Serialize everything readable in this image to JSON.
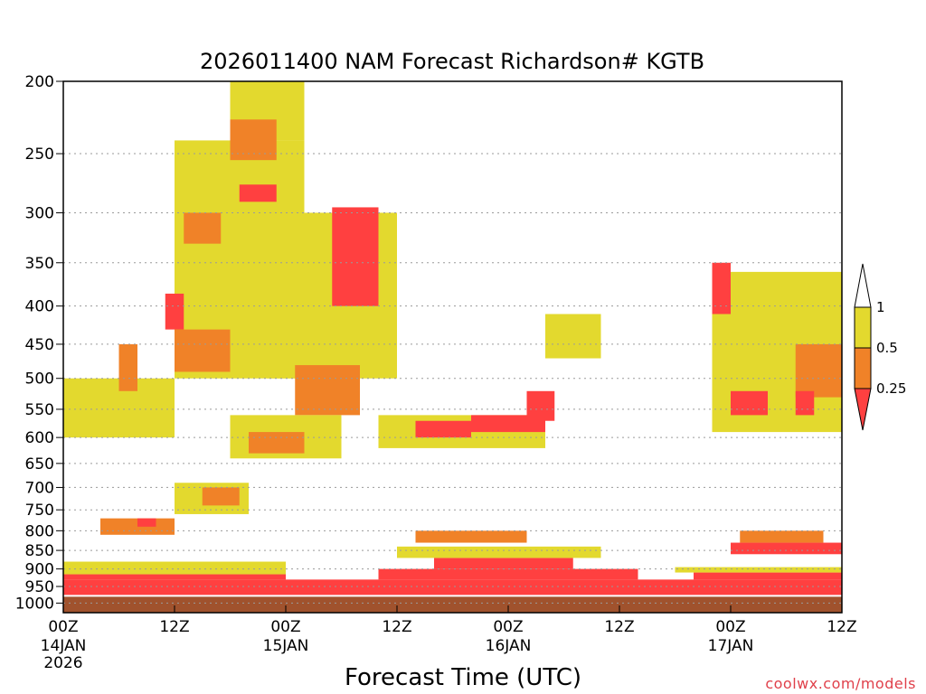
{
  "chart_data": {
    "type": "heatmap",
    "title": "2026011400 NAM Forecast Richardson# KGTB",
    "xlabel": "Forecast Time (UTC)",
    "ylabel": "",
    "y_axis": "pressure (hPa), inverted",
    "ylim": [
      1030,
      200
    ],
    "y_ticks": [
      "200",
      "250",
      "300",
      "350",
      "400",
      "450",
      "500",
      "550",
      "600",
      "650",
      "700",
      "750",
      "800",
      "850",
      "900",
      "950",
      "1000"
    ],
    "y_tick_values": [
      200,
      250,
      300,
      350,
      400,
      450,
      500,
      550,
      600,
      650,
      700,
      750,
      800,
      850,
      900,
      950,
      1000
    ],
    "xlim_hours": [
      0,
      84
    ],
    "x_ticks": [
      {
        "hour": 0,
        "time": "00Z",
        "date": "14JAN",
        "year": "2026"
      },
      {
        "hour": 12,
        "time": "12Z",
        "date": "",
        "year": ""
      },
      {
        "hour": 24,
        "time": "00Z",
        "date": "15JAN",
        "year": ""
      },
      {
        "hour": 36,
        "time": "12Z",
        "date": "",
        "year": ""
      },
      {
        "hour": 48,
        "time": "00Z",
        "date": "16JAN",
        "year": ""
      },
      {
        "hour": 60,
        "time": "12Z",
        "date": "",
        "year": ""
      },
      {
        "hour": 72,
        "time": "00Z",
        "date": "17JAN",
        "year": ""
      },
      {
        "hour": 84,
        "time": "12Z",
        "date": "",
        "year": ""
      }
    ],
    "grid": "dotted horizontal lines at each pressure tick",
    "legend": {
      "placement": "right",
      "levels": [
        "1",
        "0.5",
        "0.25"
      ],
      "bins": [
        {
          "range": "> 1",
          "color": "#ffffff"
        },
        {
          "range": "0.5 - 1",
          "color": "#e3d92e"
        },
        {
          "range": "0.25 - 0.5",
          "color": "#f08228"
        },
        {
          "range": "< 0.25",
          "color": "#ff4040"
        }
      ]
    },
    "ground_color": "#a0522d",
    "ground_level_hpa": 1000,
    "regions": [
      {
        "class": "lt_025",
        "t0": 0,
        "t1": 84,
        "p_top": 930,
        "p_bot": 985
      },
      {
        "class": "lt_025",
        "t0": 0,
        "t1": 24,
        "p_top": 915,
        "p_bot": 930
      },
      {
        "class": "lt_025",
        "t0": 34,
        "t1": 62,
        "p_top": 900,
        "p_bot": 930
      },
      {
        "class": "lt_025",
        "t0": 40,
        "t1": 55,
        "p_top": 870,
        "p_bot": 900
      },
      {
        "class": "lt_025",
        "t0": 68,
        "t1": 84,
        "p_top": 910,
        "p_bot": 930
      },
      {
        "class": "lt_025",
        "t0": 72,
        "t1": 84,
        "p_top": 830,
        "p_bot": 860
      },
      {
        "class": "half_1",
        "t0": 0,
        "t1": 24,
        "p_top": 880,
        "p_bot": 915
      },
      {
        "class": "half_1",
        "t0": 36,
        "t1": 58,
        "p_top": 840,
        "p_bot": 870
      },
      {
        "class": "half_1",
        "t0": 66,
        "t1": 84,
        "p_top": 895,
        "p_bot": 910
      },
      {
        "class": "q_half",
        "t0": 4,
        "t1": 12,
        "p_top": 770,
        "p_bot": 810
      },
      {
        "class": "q_half",
        "t0": 38,
        "t1": 50,
        "p_top": 800,
        "p_bot": 830
      },
      {
        "class": "lt_025",
        "t0": 8,
        "t1": 10,
        "p_top": 770,
        "p_bot": 790
      },
      {
        "class": "q_half",
        "t0": 73,
        "t1": 82,
        "p_top": 800,
        "p_bot": 830
      },
      {
        "class": "half_1",
        "t0": 18,
        "t1": 26,
        "p_top": 200,
        "p_bot": 240
      },
      {
        "class": "half_1",
        "t0": 12,
        "t1": 26,
        "p_top": 240,
        "p_bot": 500
      },
      {
        "class": "q_half",
        "t0": 18,
        "t1": 23,
        "p_top": 225,
        "p_bot": 255
      },
      {
        "class": "lt_025",
        "t0": 19,
        "t1": 23,
        "p_top": 275,
        "p_bot": 290
      },
      {
        "class": "q_half",
        "t0": 13,
        "t1": 17,
        "p_top": 300,
        "p_bot": 330
      },
      {
        "class": "lt_025",
        "t0": 11,
        "t1": 13,
        "p_top": 385,
        "p_bot": 430
      },
      {
        "class": "q_half",
        "t0": 12,
        "t1": 18,
        "p_top": 430,
        "p_bot": 490
      },
      {
        "class": "half_1",
        "t0": 22,
        "t1": 36,
        "p_top": 300,
        "p_bot": 500
      },
      {
        "class": "lt_025",
        "t0": 29,
        "t1": 34,
        "p_top": 295,
        "p_bot": 400
      },
      {
        "class": "q_half",
        "t0": 25,
        "t1": 32,
        "p_top": 480,
        "p_bot": 560
      },
      {
        "class": "half_1",
        "t0": 0,
        "t1": 12,
        "p_top": 500,
        "p_bot": 600
      },
      {
        "class": "q_half",
        "t0": 6,
        "t1": 8,
        "p_top": 450,
        "p_bot": 520
      },
      {
        "class": "half_1",
        "t0": 18,
        "t1": 30,
        "p_top": 560,
        "p_bot": 640
      },
      {
        "class": "q_half",
        "t0": 20,
        "t1": 26,
        "p_top": 590,
        "p_bot": 630
      },
      {
        "class": "half_1",
        "t0": 34,
        "t1": 52,
        "p_top": 560,
        "p_bot": 620
      },
      {
        "class": "lt_025",
        "t0": 38,
        "t1": 44,
        "p_top": 570,
        "p_bot": 600
      },
      {
        "class": "lt_025",
        "t0": 44,
        "t1": 52,
        "p_top": 560,
        "p_bot": 590
      },
      {
        "class": "lt_025",
        "t0": 50,
        "t1": 53,
        "p_top": 520,
        "p_bot": 570
      },
      {
        "class": "half_1",
        "t0": 52,
        "t1": 58,
        "p_top": 410,
        "p_bot": 470
      },
      {
        "class": "half_1",
        "t0": 70,
        "t1": 84,
        "p_top": 360,
        "p_bot": 590
      },
      {
        "class": "lt_025",
        "t0": 70,
        "t1": 72,
        "p_top": 350,
        "p_bot": 410
      },
      {
        "class": "lt_025",
        "t0": 72,
        "t1": 76,
        "p_top": 520,
        "p_bot": 560
      },
      {
        "class": "q_half",
        "t0": 79,
        "t1": 84,
        "p_top": 450,
        "p_bot": 530
      },
      {
        "class": "lt_025",
        "t0": 79,
        "t1": 81,
        "p_top": 520,
        "p_bot": 560
      },
      {
        "class": "half_1",
        "t0": 12,
        "t1": 20,
        "p_top": 690,
        "p_bot": 760
      },
      {
        "class": "q_half",
        "t0": 15,
        "t1": 19,
        "p_top": 700,
        "p_bot": 740
      }
    ]
  },
  "footer": {
    "date_year": "2026",
    "credit": "coolwx.com/models"
  }
}
